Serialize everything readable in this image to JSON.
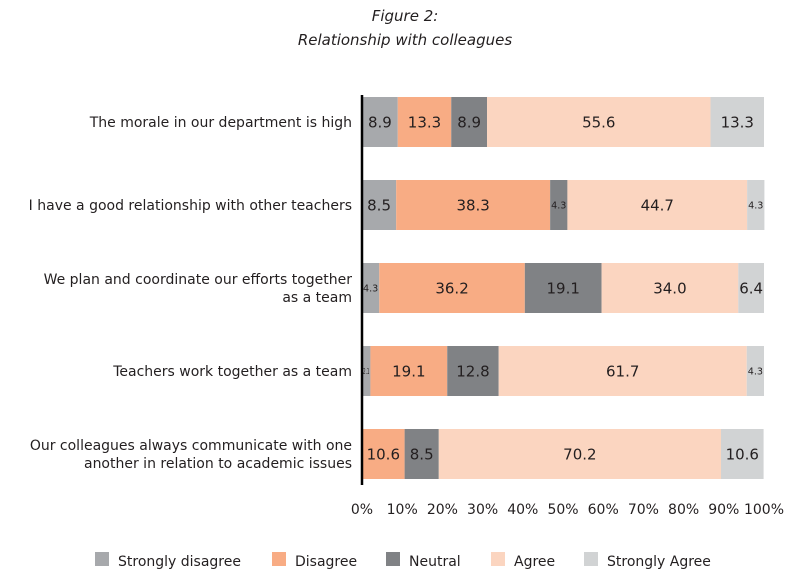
{
  "chart_data": {
    "type": "bar",
    "stacked": true,
    "orientation": "horizontal",
    "title": "Figure 2:",
    "subtitle": "Relationship with colleagues",
    "categories": [
      [
        "The morale in our department is high"
      ],
      [
        "I have a good relationship with other teachers"
      ],
      [
        "We plan and coordinate our efforts together",
        "as a team"
      ],
      [
        "Teachers work together as a team"
      ],
      [
        "Our colleagues always communicate with one",
        "another in relation to academic issues"
      ]
    ],
    "series": [
      {
        "name": "Strongly disagree",
        "color": "#a7a9ac",
        "values": [
          8.9,
          8.5,
          4.3,
          2.1,
          0
        ]
      },
      {
        "name": "Disagree",
        "color": "#f8ac84",
        "values": [
          13.3,
          38.3,
          36.2,
          19.1,
          10.6
        ]
      },
      {
        "name": "Neutral",
        "color": "#808285",
        "values": [
          8.9,
          4.3,
          19.1,
          12.8,
          8.5
        ]
      },
      {
        "name": "Agree",
        "color": "#fbd5c0",
        "values": [
          55.6,
          44.7,
          34.0,
          61.7,
          70.2
        ]
      },
      {
        "name": "Strongly Agree",
        "color": "#d1d3d4",
        "values": [
          13.3,
          4.3,
          6.4,
          4.3,
          10.6
        ]
      }
    ],
    "xlim": [
      0,
      100
    ],
    "xticks": [
      "0%",
      "10%",
      "20%",
      "30%",
      "40%",
      "50%",
      "60%",
      "70%",
      "80%",
      "90%",
      "100%"
    ],
    "legend": "bottom",
    "grid": false
  }
}
